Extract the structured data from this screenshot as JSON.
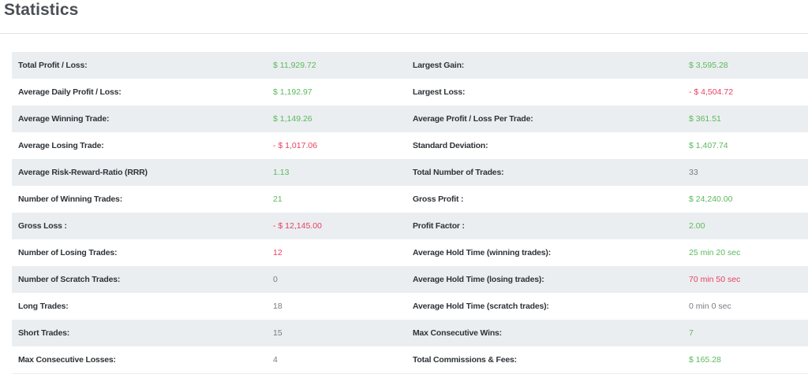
{
  "page": {
    "title": "Statistics"
  },
  "colors": {
    "positive": "#5cb85c",
    "negative": "#e8415f",
    "neutral": "#777b80",
    "row_stripe": "#ebeef1"
  },
  "rows": [
    {
      "left": {
        "label": "Total Profit / Loss:",
        "value": "$ 11,929.72",
        "status": "positive"
      },
      "right": {
        "label": "Largest Gain:",
        "value": "$ 3,595.28",
        "status": "positive"
      }
    },
    {
      "left": {
        "label": "Average Daily Profit / Loss:",
        "value": "$ 1,192.97",
        "status": "positive"
      },
      "right": {
        "label": "Largest Loss:",
        "value": "- $ 4,504.72",
        "status": "negative"
      }
    },
    {
      "left": {
        "label": "Average Winning Trade:",
        "value": "$ 1,149.26",
        "status": "positive"
      },
      "right": {
        "label": "Average Profit / Loss Per Trade:",
        "value": "$ 361.51",
        "status": "positive"
      }
    },
    {
      "left": {
        "label": "Average Losing Trade:",
        "value": "- $ 1,017.06",
        "status": "negative"
      },
      "right": {
        "label": "Standard Deviation:",
        "value": "$ 1,407.74",
        "status": "positive"
      }
    },
    {
      "left": {
        "label": "Average Risk-Reward-Ratio (RRR)",
        "value": "1.13",
        "status": "positive"
      },
      "right": {
        "label": "Total Number of Trades:",
        "value": "33",
        "status": "neutral"
      }
    },
    {
      "left": {
        "label": "Number of Winning Trades:",
        "value": "21",
        "status": "positive"
      },
      "right": {
        "label": "Gross Profit :",
        "value": "$ 24,240.00",
        "status": "positive"
      }
    },
    {
      "left": {
        "label": "Gross Loss :",
        "value": "- $ 12,145.00",
        "status": "negative"
      },
      "right": {
        "label": "Profit Factor :",
        "value": "2.00",
        "status": "positive"
      }
    },
    {
      "left": {
        "label": "Number of Losing Trades:",
        "value": "12",
        "status": "negative"
      },
      "right": {
        "label": "Average Hold Time (winning trades):",
        "value": "25 min 20 sec",
        "status": "positive"
      }
    },
    {
      "left": {
        "label": "Number of Scratch Trades:",
        "value": "0",
        "status": "neutral"
      },
      "right": {
        "label": "Average Hold Time (losing trades):",
        "value": "70 min 50 sec",
        "status": "negative"
      }
    },
    {
      "left": {
        "label": "Long Trades:",
        "value": "18",
        "status": "neutral"
      },
      "right": {
        "label": "Average Hold Time (scratch trades):",
        "value": "0 min 0 sec",
        "status": "neutral"
      }
    },
    {
      "left": {
        "label": "Short Trades:",
        "value": "15",
        "status": "neutral"
      },
      "right": {
        "label": "Max Consecutive Wins:",
        "value": "7",
        "status": "positive"
      }
    },
    {
      "left": {
        "label": "Max Consecutive Losses:",
        "value": "4",
        "status": "neutral"
      },
      "right": {
        "label": "Total Commissions & Fees:",
        "value": "$ 165.28",
        "status": "positive"
      }
    }
  ]
}
